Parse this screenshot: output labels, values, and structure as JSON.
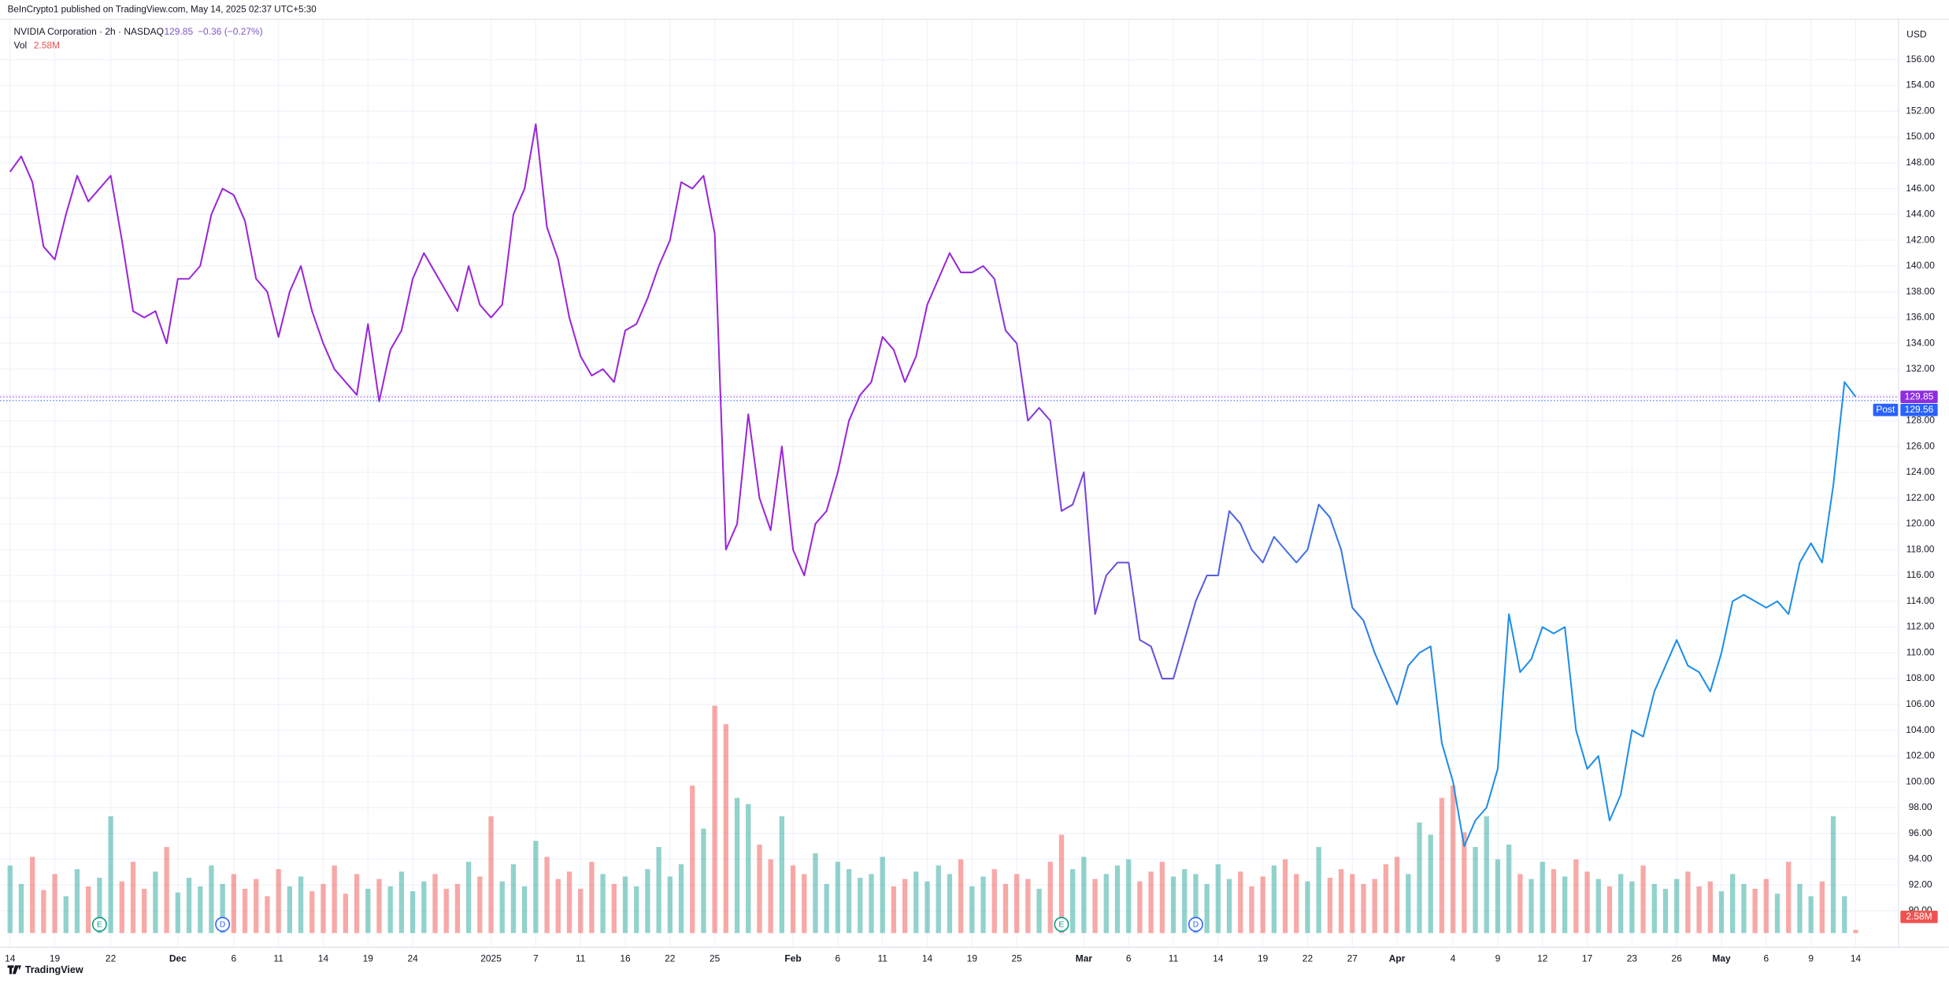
{
  "header": "BeInCrypto1 published on TradingView.com, May 14, 2025 02:37 UTC+5:30",
  "footer": "TradingView",
  "chart_data": {
    "type": "line",
    "title": "NVIDIA Corporation · 2h · NASDAQ",
    "currency": "USD",
    "last_price": 129.85,
    "change_label": "−0.36 (−0.27%)",
    "post_label": "Post",
    "post_price": 129.56,
    "last_color": "#8e2de0",
    "post_color": "#2962ff",
    "categories": [
      "14",
      null,
      null,
      null,
      "19",
      null,
      null,
      null,
      null,
      "22",
      null,
      null,
      null,
      null,
      null,
      "Dec",
      null,
      null,
      null,
      null,
      "6",
      null,
      null,
      null,
      "11",
      null,
      null,
      null,
      "14",
      null,
      null,
      null,
      "19",
      null,
      null,
      null,
      "24",
      null,
      null,
      null,
      null,
      null,
      null,
      "2025",
      null,
      null,
      null,
      "7",
      null,
      null,
      null,
      "11",
      null,
      null,
      null,
      "16",
      null,
      null,
      null,
      "22",
      null,
      null,
      null,
      "25",
      null,
      null,
      null,
      null,
      null,
      null,
      "Feb",
      null,
      null,
      null,
      "6",
      null,
      null,
      null,
      "11",
      null,
      null,
      null,
      "14",
      null,
      null,
      null,
      "19",
      null,
      null,
      null,
      "25",
      null,
      null,
      null,
      null,
      null,
      "Mar",
      null,
      null,
      null,
      "6",
      null,
      null,
      null,
      "11",
      null,
      null,
      null,
      "14",
      null,
      null,
      null,
      "19",
      null,
      null,
      null,
      "22",
      null,
      null,
      null,
      "27",
      null,
      null,
      null,
      "Apr",
      null,
      null,
      null,
      null,
      "4",
      null,
      null,
      null,
      "9",
      null,
      null,
      null,
      "12",
      null,
      null,
      null,
      "17",
      null,
      null,
      null,
      "23",
      null,
      null,
      null,
      "26",
      null,
      null,
      null,
      "May",
      null,
      null,
      null,
      "6",
      null,
      null,
      null,
      "9",
      null,
      null,
      null,
      "14"
    ],
    "series": [
      {
        "color_start": "#9b27d8",
        "color_end": "#1e8fe8",
        "values": [
          147.3,
          148.5,
          146.5,
          141.5,
          140.5,
          144,
          147,
          145,
          146,
          147,
          142,
          136.5,
          136,
          136.5,
          134,
          139,
          139,
          140,
          144,
          146,
          145.5,
          143.5,
          139,
          138,
          134.5,
          138,
          140,
          136.5,
          134,
          132,
          131,
          130,
          135.5,
          129.5,
          133.5,
          135,
          139,
          141,
          139.5,
          138,
          136.5,
          140,
          137,
          136,
          137,
          144,
          146,
          151,
          143,
          140.5,
          136,
          133,
          131.5,
          132,
          131,
          135,
          135.5,
          137.5,
          140,
          142,
          146.5,
          146,
          147,
          142.5,
          118,
          120,
          128.5,
          122,
          119.5,
          126,
          118,
          116,
          120,
          121,
          124,
          128,
          130,
          131,
          134.5,
          133.5,
          131,
          133,
          137,
          139,
          141,
          139.5,
          139.5,
          140,
          139,
          135,
          134,
          128,
          129,
          128,
          121,
          121.5,
          124,
          113,
          116,
          117,
          117,
          111,
          110.5,
          108,
          108,
          111,
          114,
          116,
          116,
          121,
          120,
          118,
          117,
          119,
          118,
          117,
          118,
          121.5,
          120.5,
          118,
          113.5,
          112.5,
          110,
          108,
          106,
          109,
          110,
          110.5,
          103,
          100,
          95,
          97,
          98,
          101,
          113,
          108.5,
          109.5,
          112,
          111.5,
          112,
          104,
          101,
          102,
          97,
          99,
          104,
          103.5,
          107,
          109,
          111,
          109,
          108.5,
          107,
          110,
          114,
          114.5,
          114,
          113.5,
          114,
          113,
          117,
          118.5,
          117,
          123,
          131,
          129.85
        ]
      }
    ],
    "volume": {
      "name": "Vol",
      "last_label": "2.58M",
      "up_color": "#26a69a",
      "down_color": "#ef5350",
      "values": [
        55,
        40,
        62,
        35,
        48,
        30,
        52,
        38,
        45,
        95,
        42,
        58,
        36,
        50,
        70,
        33,
        45,
        38,
        55,
        40,
        48,
        36,
        44,
        30,
        52,
        38,
        46,
        34,
        40,
        55,
        32,
        48,
        36,
        44,
        38,
        50,
        34,
        42,
        48,
        36,
        40,
        58,
        46,
        95,
        42,
        56,
        38,
        75,
        62,
        44,
        50,
        36,
        58,
        48,
        40,
        46,
        38,
        52,
        70,
        46,
        56,
        120,
        85,
        185,
        170,
        110,
        105,
        72,
        60,
        95,
        55,
        48,
        65,
        40,
        58,
        52,
        45,
        48,
        62,
        38,
        44,
        50,
        42,
        55,
        48,
        60,
        38,
        46,
        52,
        40,
        48,
        44,
        36,
        58,
        80,
        52,
        62,
        44,
        48,
        55,
        60,
        42,
        50,
        58,
        46,
        52,
        48,
        40,
        56,
        44,
        50,
        38,
        46,
        55,
        60,
        48,
        42,
        70,
        45,
        52,
        48,
        40,
        44,
        56,
        62,
        48,
        90,
        80,
        110,
        120,
        82,
        70,
        95,
        60,
        72,
        48,
        44,
        58,
        52,
        46,
        60,
        50,
        44,
        38,
        48,
        42,
        55,
        40,
        36,
        44,
        50,
        38,
        42,
        34,
        48,
        40,
        36,
        44,
        32,
        58,
        40,
        30,
        42,
        95,
        30,
        2.58
      ]
    },
    "events": [
      {
        "label": "E",
        "index": 8,
        "color": "#089981"
      },
      {
        "label": "D",
        "index": 19,
        "color": "#2962ff"
      },
      {
        "label": "E",
        "index": 94,
        "color": "#089981"
      },
      {
        "label": "D",
        "index": 106,
        "color": "#2962ff"
      }
    ],
    "ylim": [
      87.4,
      158.7
    ],
    "yticks": [
      {
        "value": 90,
        "label": "90.00"
      },
      {
        "value": 92,
        "label": "92.00"
      },
      {
        "value": 94,
        "label": "94.00"
      },
      {
        "value": 96,
        "label": "96.00"
      },
      {
        "value": 98,
        "label": "98.00"
      },
      {
        "value": 100,
        "label": "100.00"
      },
      {
        "value": 102,
        "label": "102.00"
      },
      {
        "value": 104,
        "label": "104.00"
      },
      {
        "value": 106,
        "label": "106.00"
      },
      {
        "value": 108,
        "label": "108.00"
      },
      {
        "value": 110,
        "label": "110.00"
      },
      {
        "value": 112,
        "label": "112.00"
      },
      {
        "value": 114,
        "label": "114.00"
      },
      {
        "value": 116,
        "label": "116.00"
      },
      {
        "value": 118,
        "label": "118.00"
      },
      {
        "value": 120,
        "label": "120.00"
      },
      {
        "value": 122,
        "label": "122.00"
      },
      {
        "value": 124,
        "label": "124.00"
      },
      {
        "value": 126,
        "label": "126.00"
      },
      {
        "value": 128,
        "label": "128.00"
      },
      {
        "value": 130,
        "label": "130.00"
      },
      {
        "value": 132,
        "label": "132.00"
      },
      {
        "value": 134,
        "label": "134.00"
      },
      {
        "value": 136,
        "label": "136.00"
      },
      {
        "value": 138,
        "label": "138.00"
      },
      {
        "value": 140,
        "label": "140.00"
      },
      {
        "value": 142,
        "label": "142.00"
      },
      {
        "value": 144,
        "label": "144.00"
      },
      {
        "value": 146,
        "label": "146.00"
      },
      {
        "value": 148,
        "label": "148.00"
      },
      {
        "value": 150,
        "label": "150.00"
      },
      {
        "value": 152,
        "label": "152.00"
      },
      {
        "value": 154,
        "label": "154.00"
      },
      {
        "value": 156,
        "label": "156.00"
      }
    ],
    "grid": true
  }
}
